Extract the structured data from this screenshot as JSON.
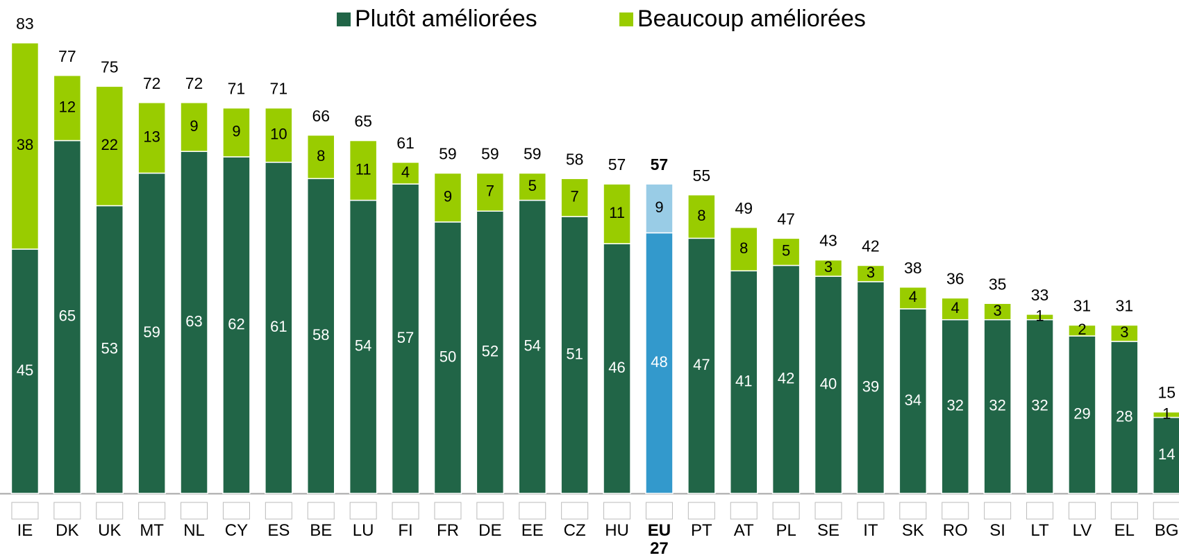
{
  "chart_data": {
    "type": "stacked_bar",
    "categories": [
      "IE",
      "DK",
      "UK",
      "MT",
      "NL",
      "CY",
      "ES",
      "BE",
      "LU",
      "FI",
      "FR",
      "DE",
      "EE",
      "CZ",
      "HU",
      "EU 27",
      "PT",
      "AT",
      "PL",
      "SE",
      "IT",
      "SK",
      "RO",
      "SI",
      "LT",
      "LV",
      "EL",
      "BG"
    ],
    "series": [
      {
        "name": "Plutôt améliorées",
        "color": "#216547",
        "highlight_color": "#3399cc",
        "values": [
          45,
          65,
          53,
          59,
          63,
          62,
          61,
          58,
          54,
          57,
          50,
          52,
          54,
          51,
          46,
          48,
          47,
          41,
          42,
          40,
          39,
          34,
          32,
          32,
          32,
          29,
          28,
          14
        ]
      },
      {
        "name": "Beaucoup améliorées",
        "color": "#99cc00",
        "highlight_color": "#99cce6",
        "values": [
          38,
          12,
          22,
          13,
          9,
          9,
          10,
          8,
          11,
          4,
          9,
          7,
          5,
          7,
          11,
          9,
          8,
          8,
          5,
          3,
          3,
          4,
          4,
          3,
          1,
          2,
          3,
          1
        ]
      }
    ],
    "totals": [
      83,
      77,
      75,
      72,
      72,
      71,
      71,
      66,
      65,
      61,
      59,
      59,
      59,
      58,
      57,
      57,
      55,
      49,
      47,
      43,
      42,
      38,
      36,
      35,
      33,
      31,
      31,
      15
    ],
    "highlight": "EU 27",
    "ylim": [
      0,
      90
    ]
  }
}
